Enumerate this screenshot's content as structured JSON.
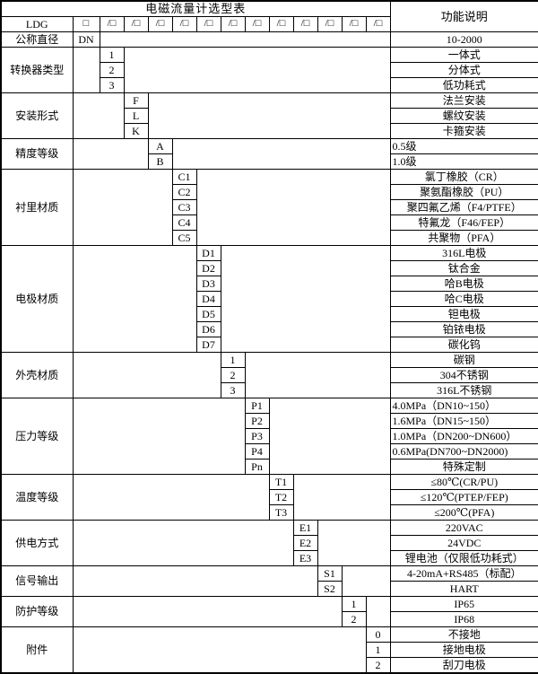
{
  "title": "电磁流量计选型表",
  "function_header": "功能说明",
  "header": {
    "model_prefix": "LDG",
    "first_box": "□",
    "slash_box": "/□"
  },
  "diameter_row": {
    "label": "公称直径",
    "code": "DN",
    "desc": "10-2000"
  },
  "groups": [
    {
      "label": "转换器类型",
      "options": [
        {
          "code": "1",
          "desc": "一体式"
        },
        {
          "code": "2",
          "desc": "分体式"
        },
        {
          "code": "3",
          "desc": "低功耗式"
        }
      ]
    },
    {
      "label": "安装形式",
      "options": [
        {
          "code": "F",
          "desc": "法兰安装"
        },
        {
          "code": "L",
          "desc": "螺纹安装"
        },
        {
          "code": "K",
          "desc": "卡箍安装"
        }
      ]
    },
    {
      "label": "精度等级",
      "options": [
        {
          "code": "A",
          "desc": "0.5级"
        },
        {
          "code": "B",
          "desc": "1.0级"
        }
      ]
    },
    {
      "label": "衬里材质",
      "options": [
        {
          "code": "C1",
          "desc": "氯丁橡胶（CR）"
        },
        {
          "code": "C2",
          "desc": "聚氨酯橡胶（PU）"
        },
        {
          "code": "C3",
          "desc": "聚四氟乙烯（F4/PTFE）"
        },
        {
          "code": "C4",
          "desc": "特氟龙（F46/FEP）"
        },
        {
          "code": "C5",
          "desc": "共聚物（PFA）"
        }
      ]
    },
    {
      "label": "电极材质",
      "options": [
        {
          "code": "D1",
          "desc": "316L电极"
        },
        {
          "code": "D2",
          "desc": "钛合金"
        },
        {
          "code": "D3",
          "desc": "哈B电极"
        },
        {
          "code": "D4",
          "desc": "哈C电极"
        },
        {
          "code": "D5",
          "desc": "钽电极"
        },
        {
          "code": "D6",
          "desc": "铂铱电极"
        },
        {
          "code": "D7",
          "desc": "碳化钨"
        }
      ]
    },
    {
      "label": "外壳材质",
      "options": [
        {
          "code": "1",
          "desc": "碳钢"
        },
        {
          "code": "2",
          "desc": "304不锈钢"
        },
        {
          "code": "3",
          "desc": "316L不锈钢"
        }
      ]
    },
    {
      "label": "压力等级",
      "options": [
        {
          "code": "P1",
          "desc": "4.0MPa（DN10~150）"
        },
        {
          "code": "P2",
          "desc": "1.6MPa（DN15~150）"
        },
        {
          "code": "P3",
          "desc": "1.0MPa（DN200~DN600）"
        },
        {
          "code": "P4",
          "desc": "0.6MPa(DN700~DN2000)"
        },
        {
          "code": "Pn",
          "desc": "特殊定制"
        }
      ]
    },
    {
      "label": "温度等级",
      "options": [
        {
          "code": "T1",
          "desc": "≤80℃(CR/PU)"
        },
        {
          "code": "T2",
          "desc": "≤120℃(PTEP/FEP)"
        },
        {
          "code": "T3",
          "desc": "≤200℃(PFA)"
        }
      ]
    },
    {
      "label": "供电方式",
      "options": [
        {
          "code": "E1",
          "desc": "220VAC"
        },
        {
          "code": "E2",
          "desc": "24VDC"
        },
        {
          "code": "E3",
          "desc": "锂电池（仅限低功耗式）"
        }
      ]
    },
    {
      "label": "信号输出",
      "options": [
        {
          "code": "S1",
          "desc": "4-20mA+RS485（标配）"
        },
        {
          "code": "S2",
          "desc": "HART"
        }
      ]
    },
    {
      "label": "防护等级",
      "options": [
        {
          "code": "1",
          "desc": "IP65"
        },
        {
          "code": "2",
          "desc": "IP68"
        }
      ]
    },
    {
      "label": "附件",
      "options": [
        {
          "code": "0",
          "desc": "不接地"
        },
        {
          "code": "1",
          "desc": "接地电极"
        },
        {
          "code": "2",
          "desc": "刮刀电极"
        }
      ]
    }
  ]
}
